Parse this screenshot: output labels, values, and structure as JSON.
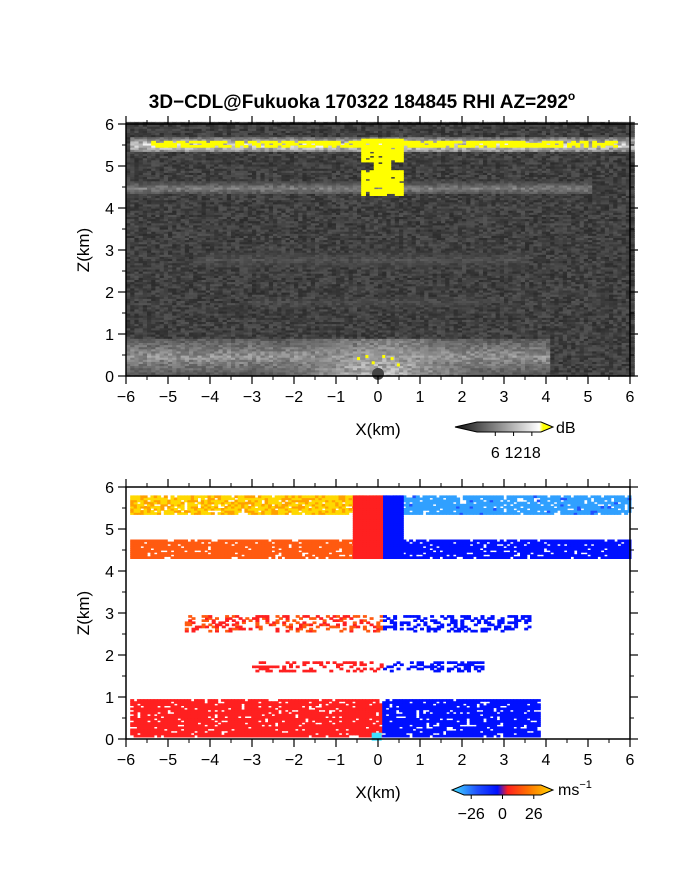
{
  "title": {
    "main": "3D−CDL@Fukuoka 170322 184845 RHI AZ=292",
    "deg": "o"
  },
  "chart_data": [
    {
      "type": "heatmap",
      "name": "reflectivity",
      "xlabel": "X(km)",
      "ylabel": "Z(km)",
      "xlim": [
        -6,
        6
      ],
      "ylim": [
        0,
        6
      ],
      "x_ticks": [
        "−6",
        "−5",
        "−4",
        "−3",
        "−2",
        "−1",
        "0",
        "1",
        "2",
        "3",
        "4",
        "5",
        "6"
      ],
      "y_ticks": [
        "0",
        "1",
        "2",
        "3",
        "4",
        "5",
        "6"
      ],
      "colorbar": {
        "unit": "dB",
        "ticks": [
          "6",
          "12",
          "18"
        ],
        "range": [
          0,
          21
        ]
      },
      "colors": {
        "background": "#1c1c1c",
        "highlight": "#ffff00"
      },
      "layers": [
        {
          "z": [
            5.3,
            5.65
          ],
          "x": [
            -5.9,
            6.0
          ],
          "level": 0.85
        },
        {
          "z": [
            4.3,
            4.6
          ],
          "x": [
            -6.0,
            5.0
          ],
          "level": 0.45
        },
        {
          "z": [
            2.55,
            2.95
          ],
          "x": [
            -4.5,
            3.5
          ],
          "level": 0.25
        },
        {
          "z": [
            1.6,
            1.9
          ],
          "x": [
            -3.0,
            2.5
          ],
          "level": 0.22
        },
        {
          "z": [
            0.0,
            0.9
          ],
          "x": [
            -6.0,
            4.0
          ],
          "level": 0.55
        }
      ],
      "high_echo": [
        {
          "z": [
            5.3,
            5.6
          ],
          "x": [
            -5.4,
            5.6
          ]
        },
        {
          "z": [
            4.3,
            5.6
          ],
          "x": [
            -0.4,
            0.55
          ]
        }
      ]
    },
    {
      "type": "heatmap",
      "name": "doppler-velocity",
      "xlabel": "X(km)",
      "ylabel": "Z(km)",
      "xlim": [
        -6,
        6
      ],
      "ylim": [
        0,
        6
      ],
      "x_ticks": [
        "−6",
        "−5",
        "−4",
        "−3",
        "−2",
        "−1",
        "0",
        "1",
        "2",
        "3",
        "4",
        "5",
        "6"
      ],
      "y_ticks": [
        "0",
        "1",
        "2",
        "3",
        "4",
        "5",
        "6"
      ],
      "colorbar": {
        "unit": "ms",
        "unit_exp": "−1",
        "ticks": [
          "−26",
          "0",
          "26"
        ],
        "range": [
          -32,
          32
        ]
      },
      "colors": {
        "positive": [
          "#ff2020",
          "#ff5a10",
          "#ffa000",
          "#ffd800"
        ],
        "negative": [
          "#0010ff",
          "#2050ff",
          "#30a0ff",
          "#40e0ff"
        ]
      },
      "bands": [
        {
          "z": [
            5.35,
            5.75
          ],
          "x": [
            -5.9,
            6.0
          ],
          "v_left": 22,
          "v_right": -16
        },
        {
          "z": [
            4.3,
            4.7
          ],
          "x": [
            -5.9,
            6.0
          ],
          "v_left": 10,
          "v_right": -3
        },
        {
          "z": [
            2.55,
            2.9
          ],
          "x": [
            -4.6,
            3.6
          ],
          "v_left": 7,
          "v_right": -3,
          "sparse": true
        },
        {
          "z": [
            1.6,
            1.85
          ],
          "x": [
            -3.0,
            2.5
          ],
          "v_left": 5,
          "v_right": -3,
          "sparse": true
        },
        {
          "z": [
            0.05,
            0.95
          ],
          "x": [
            -5.9,
            3.8
          ],
          "v_left": 2,
          "v_right": -2
        }
      ],
      "updraft_column": {
        "z": [
          4.3,
          5.75
        ],
        "x": [
          -0.6,
          0.6
        ]
      }
    }
  ]
}
